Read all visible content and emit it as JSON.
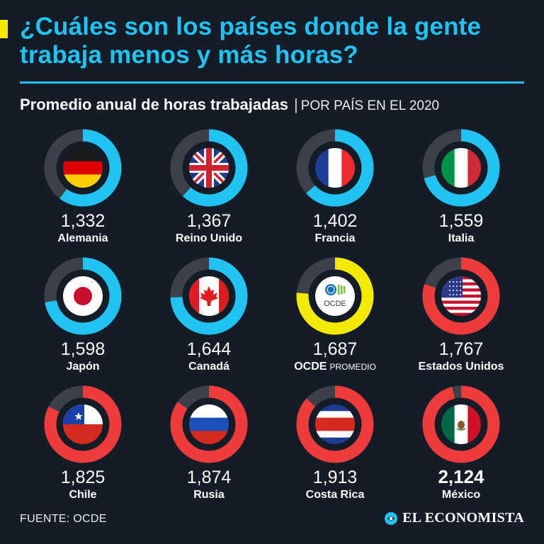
{
  "header": {
    "title": "¿Cuáles son los países donde la gente trabaja menos y más horas?",
    "subtitle_main": "Promedio anual de horas trabajadas",
    "subtitle_sep": "|",
    "subtitle_sub": "POR PAÍS EN EL 2020"
  },
  "footer": {
    "source": "FUENTE: OCDE",
    "brand": "EL ECONOMISTA"
  },
  "colors": {
    "background": "#141c28",
    "accent_blue": "#21c3f2",
    "accent_yellow": "#f4e900",
    "accent_red": "#ef3b3b",
    "ring_track": "#3b4049"
  },
  "chart_data": {
    "type": "donut-grid",
    "max_hours": 2208,
    "items": [
      {
        "value": 1332,
        "label": "1,332",
        "name": "Alemania",
        "color": "#21c3f2",
        "flag": "germany"
      },
      {
        "value": 1367,
        "label": "1,367",
        "name": "Reino Unido",
        "color": "#21c3f2",
        "flag": "uk"
      },
      {
        "value": 1402,
        "label": "1,402",
        "name": "Francia",
        "color": "#21c3f2",
        "flag": "france"
      },
      {
        "value": 1559,
        "label": "1,559",
        "name": "Italia",
        "color": "#21c3f2",
        "flag": "italy"
      },
      {
        "value": 1598,
        "label": "1,598",
        "name": "Japón",
        "color": "#21c3f2",
        "flag": "japan"
      },
      {
        "value": 1644,
        "label": "1,644",
        "name": "Canadá",
        "color": "#21c3f2",
        "flag": "canada"
      },
      {
        "value": 1687,
        "label": "1,687",
        "name": "OCDE",
        "note": "PROMEDIO",
        "color": "#f4e900",
        "flag": "ocde",
        "flag_text": "OCDE"
      },
      {
        "value": 1767,
        "label": "1,767",
        "name": "Estados Unidos",
        "color": "#ef3b3b",
        "flag": "usa"
      },
      {
        "value": 1825,
        "label": "1,825",
        "name": "Chile",
        "color": "#ef3b3b",
        "flag": "chile"
      },
      {
        "value": 1874,
        "label": "1,874",
        "name": "Rusia",
        "color": "#ef3b3b",
        "flag": "russia"
      },
      {
        "value": 1913,
        "label": "1,913",
        "name": "Costa Rica",
        "color": "#ef3b3b",
        "flag": "costarica"
      },
      {
        "value": 2124,
        "label": "2,124",
        "name": "México",
        "color": "#ef3b3b",
        "flag": "mexico",
        "highlight": true
      }
    ]
  }
}
